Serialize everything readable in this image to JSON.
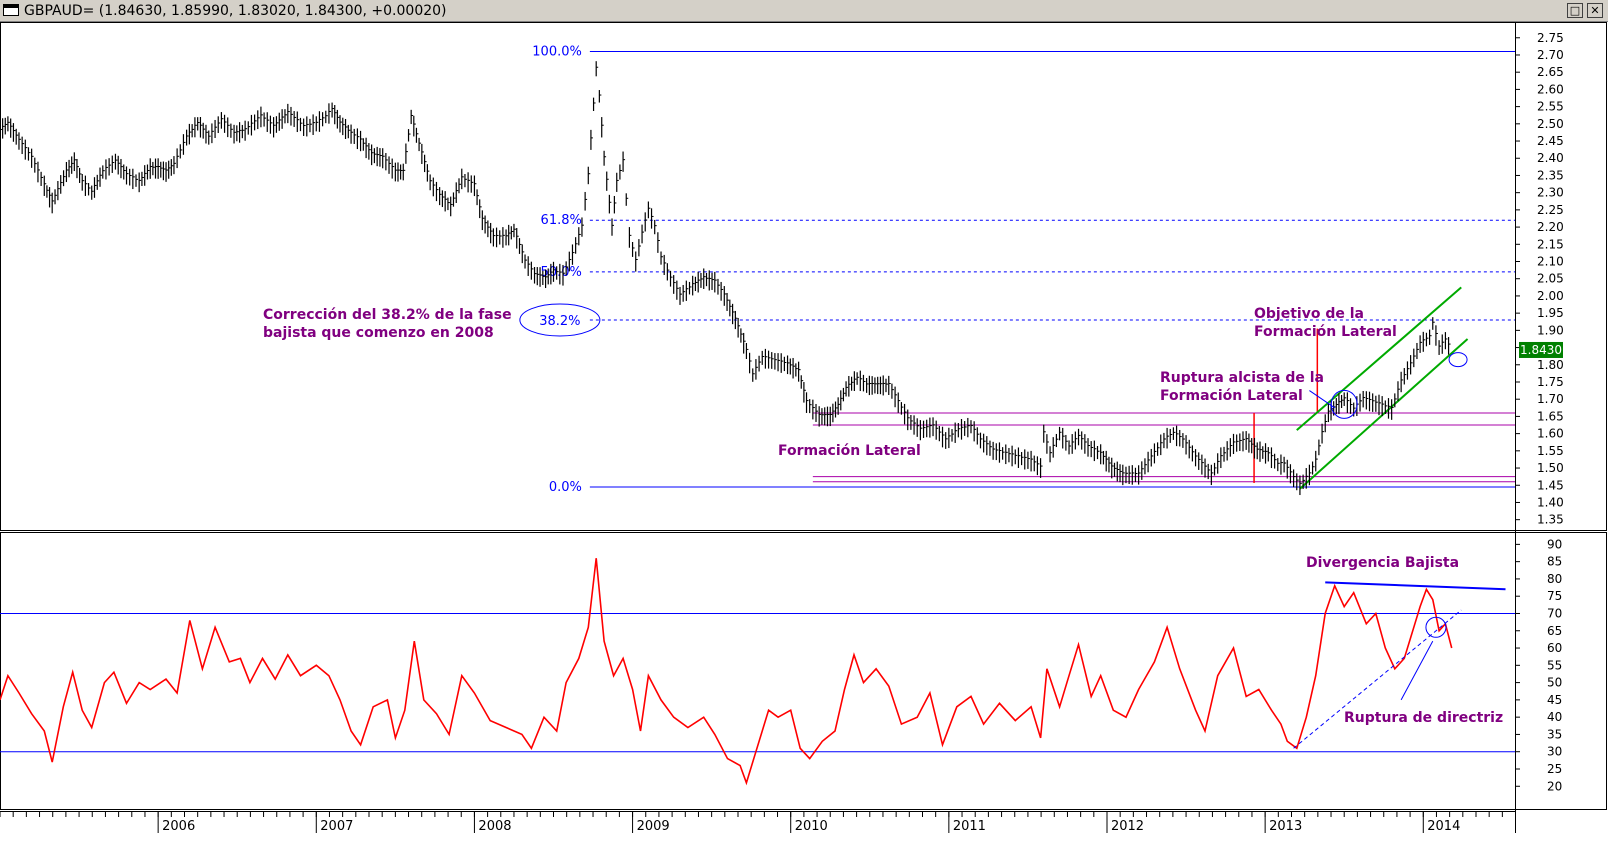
{
  "window": {
    "title": "GBPAUD= (1.84630, 1.85990, 1.83020, 1.84300, +0.00020)",
    "restore_glyph": "□",
    "close_glyph": "✕"
  },
  "colors": {
    "price": "#000000",
    "rsi": "#ff0000",
    "fib": "#0000ff",
    "range": "#aa00aa",
    "channel": "#00aa00",
    "annotation": "#800080",
    "last_price_bg": "#008000"
  },
  "chart_data": [
    {
      "type": "line",
      "name": "price",
      "xlim": [
        2005.0,
        2014.58
      ],
      "ylim": [
        1.32,
        2.79
      ],
      "y_ticks": [
        1.35,
        1.4,
        1.45,
        1.5,
        1.55,
        1.6,
        1.65,
        1.7,
        1.75,
        1.8,
        1.85,
        1.9,
        1.95,
        2.0,
        2.05,
        2.1,
        2.15,
        2.2,
        2.25,
        2.3,
        2.35,
        2.4,
        2.45,
        2.5,
        2.55,
        2.6,
        2.65,
        2.7,
        2.75
      ],
      "x_ticks": [
        {
          "x": 2006,
          "label": "2006"
        },
        {
          "x": 2007,
          "label": "2007"
        },
        {
          "x": 2008,
          "label": "2008"
        },
        {
          "x": 2009,
          "label": "2009"
        },
        {
          "x": 2010,
          "label": "2010"
        },
        {
          "x": 2011,
          "label": "2011"
        },
        {
          "x": 2012,
          "label": "2012"
        },
        {
          "x": 2013,
          "label": "2013"
        },
        {
          "x": 2014,
          "label": "2014"
        }
      ],
      "points": [
        [
          2005.0,
          2.48
        ],
        [
          2005.05,
          2.5
        ],
        [
          2005.12,
          2.45
        ],
        [
          2005.2,
          2.4
        ],
        [
          2005.28,
          2.32
        ],
        [
          2005.33,
          2.27
        ],
        [
          2005.42,
          2.36
        ],
        [
          2005.47,
          2.39
        ],
        [
          2005.52,
          2.33
        ],
        [
          2005.58,
          2.3
        ],
        [
          2005.65,
          2.36
        ],
        [
          2005.73,
          2.39
        ],
        [
          2005.8,
          2.35
        ],
        [
          2005.88,
          2.33
        ],
        [
          2005.95,
          2.37
        ],
        [
          2006.0,
          2.37
        ],
        [
          2006.05,
          2.36
        ],
        [
          2006.1,
          2.38
        ],
        [
          2006.18,
          2.46
        ],
        [
          2006.25,
          2.5
        ],
        [
          2006.32,
          2.46
        ],
        [
          2006.4,
          2.51
        ],
        [
          2006.48,
          2.47
        ],
        [
          2006.55,
          2.48
        ],
        [
          2006.65,
          2.52
        ],
        [
          2006.73,
          2.49
        ],
        [
          2006.82,
          2.53
        ],
        [
          2006.92,
          2.49
        ],
        [
          2007.0,
          2.5
        ],
        [
          2007.06,
          2.52
        ],
        [
          2007.1,
          2.54
        ],
        [
          2007.15,
          2.5
        ],
        [
          2007.22,
          2.47
        ],
        [
          2007.28,
          2.45
        ],
        [
          2007.35,
          2.41
        ],
        [
          2007.42,
          2.4
        ],
        [
          2007.5,
          2.36
        ],
        [
          2007.55,
          2.36
        ],
        [
          2007.6,
          2.52
        ],
        [
          2007.65,
          2.44
        ],
        [
          2007.72,
          2.33
        ],
        [
          2007.78,
          2.29
        ],
        [
          2007.85,
          2.26
        ],
        [
          2007.92,
          2.34
        ],
        [
          2008.0,
          2.32
        ],
        [
          2008.05,
          2.22
        ],
        [
          2008.12,
          2.17
        ],
        [
          2008.2,
          2.17
        ],
        [
          2008.25,
          2.19
        ],
        [
          2008.32,
          2.1
        ],
        [
          2008.38,
          2.06
        ],
        [
          2008.45,
          2.05
        ],
        [
          2008.5,
          2.07
        ],
        [
          2008.56,
          2.06
        ],
        [
          2008.62,
          2.12
        ],
        [
          2008.68,
          2.2
        ],
        [
          2008.72,
          2.35
        ],
        [
          2008.77,
          2.66
        ],
        [
          2008.79,
          2.58
        ],
        [
          2008.82,
          2.4
        ],
        [
          2008.87,
          2.2
        ],
        [
          2008.9,
          2.33
        ],
        [
          2008.94,
          2.39
        ],
        [
          2008.98,
          2.17
        ],
        [
          2009.02,
          2.1
        ],
        [
          2009.06,
          2.18
        ],
        [
          2009.1,
          2.25
        ],
        [
          2009.14,
          2.2
        ],
        [
          2009.18,
          2.11
        ],
        [
          2009.24,
          2.05
        ],
        [
          2009.3,
          2.0
        ],
        [
          2009.38,
          2.03
        ],
        [
          2009.45,
          2.05
        ],
        [
          2009.52,
          2.04
        ],
        [
          2009.58,
          2.0
        ],
        [
          2009.65,
          1.93
        ],
        [
          2009.72,
          1.84
        ],
        [
          2009.76,
          1.77
        ],
        [
          2009.82,
          1.82
        ],
        [
          2009.9,
          1.81
        ],
        [
          2009.98,
          1.8
        ],
        [
          2010.05,
          1.78
        ],
        [
          2010.1,
          1.69
        ],
        [
          2010.18,
          1.65
        ],
        [
          2010.25,
          1.65
        ],
        [
          2010.3,
          1.68
        ],
        [
          2010.35,
          1.73
        ],
        [
          2010.42,
          1.76
        ],
        [
          2010.48,
          1.74
        ],
        [
          2010.55,
          1.74
        ],
        [
          2010.62,
          1.74
        ],
        [
          2010.68,
          1.69
        ],
        [
          2010.74,
          1.64
        ],
        [
          2010.82,
          1.61
        ],
        [
          2010.9,
          1.62
        ],
        [
          2010.98,
          1.58
        ],
        [
          2011.06,
          1.61
        ],
        [
          2011.14,
          1.62
        ],
        [
          2011.2,
          1.58
        ],
        [
          2011.28,
          1.55
        ],
        [
          2011.36,
          1.54
        ],
        [
          2011.44,
          1.53
        ],
        [
          2011.52,
          1.52
        ],
        [
          2011.58,
          1.5
        ],
        [
          2011.6,
          1.6
        ],
        [
          2011.64,
          1.54
        ],
        [
          2011.7,
          1.6
        ],
        [
          2011.76,
          1.56
        ],
        [
          2011.82,
          1.59
        ],
        [
          2011.88,
          1.56
        ],
        [
          2011.96,
          1.54
        ],
        [
          2012.03,
          1.5
        ],
        [
          2012.1,
          1.48
        ],
        [
          2012.2,
          1.48
        ],
        [
          2012.28,
          1.53
        ],
        [
          2012.36,
          1.58
        ],
        [
          2012.42,
          1.6
        ],
        [
          2012.48,
          1.58
        ],
        [
          2012.56,
          1.53
        ],
        [
          2012.62,
          1.5
        ],
        [
          2012.66,
          1.48
        ],
        [
          2012.72,
          1.53
        ],
        [
          2012.8,
          1.57
        ],
        [
          2012.88,
          1.58
        ],
        [
          2012.95,
          1.55
        ],
        [
          2013.02,
          1.54
        ],
        [
          2013.08,
          1.51
        ],
        [
          2013.12,
          1.51
        ],
        [
          2013.18,
          1.47
        ],
        [
          2013.22,
          1.45
        ],
        [
          2013.28,
          1.48
        ],
        [
          2013.32,
          1.52
        ],
        [
          2013.36,
          1.6
        ],
        [
          2013.4,
          1.66
        ],
        [
          2013.45,
          1.68
        ],
        [
          2013.5,
          1.7
        ],
        [
          2013.56,
          1.67
        ],
        [
          2013.62,
          1.7
        ],
        [
          2013.68,
          1.69
        ],
        [
          2013.74,
          1.68
        ],
        [
          2013.8,
          1.67
        ],
        [
          2013.86,
          1.75
        ],
        [
          2013.92,
          1.8
        ],
        [
          2013.98,
          1.86
        ],
        [
          2014.04,
          1.88
        ],
        [
          2014.06,
          1.92
        ],
        [
          2014.1,
          1.85
        ],
        [
          2014.14,
          1.87
        ],
        [
          2014.18,
          1.84
        ]
      ]
    },
    {
      "type": "line",
      "name": "rsi",
      "xlim": [
        2005.0,
        2014.58
      ],
      "ylim": [
        14,
        93
      ],
      "y_ticks": [
        20,
        25,
        30,
        35,
        40,
        45,
        50,
        55,
        60,
        65,
        70,
        75,
        80,
        85,
        90
      ],
      "points": [
        [
          2005.0,
          45
        ],
        [
          2005.05,
          52
        ],
        [
          2005.12,
          47
        ],
        [
          2005.2,
          41
        ],
        [
          2005.28,
          36
        ],
        [
          2005.33,
          27
        ],
        [
          2005.4,
          43
        ],
        [
          2005.46,
          53
        ],
        [
          2005.52,
          42
        ],
        [
          2005.58,
          37
        ],
        [
          2005.66,
          50
        ],
        [
          2005.72,
          53
        ],
        [
          2005.8,
          44
        ],
        [
          2005.88,
          50
        ],
        [
          2005.95,
          48
        ],
        [
          2006.05,
          51
        ],
        [
          2006.12,
          47
        ],
        [
          2006.2,
          68
        ],
        [
          2006.28,
          54
        ],
        [
          2006.36,
          66
        ],
        [
          2006.45,
          56
        ],
        [
          2006.52,
          57
        ],
        [
          2006.58,
          50
        ],
        [
          2006.66,
          57
        ],
        [
          2006.74,
          51
        ],
        [
          2006.82,
          58
        ],
        [
          2006.9,
          52
        ],
        [
          2007.0,
          55
        ],
        [
          2007.08,
          52
        ],
        [
          2007.15,
          45
        ],
        [
          2007.22,
          36
        ],
        [
          2007.28,
          32
        ],
        [
          2007.36,
          43
        ],
        [
          2007.45,
          45
        ],
        [
          2007.5,
          34
        ],
        [
          2007.56,
          42
        ],
        [
          2007.62,
          62
        ],
        [
          2007.68,
          45
        ],
        [
          2007.76,
          41
        ],
        [
          2007.84,
          35
        ],
        [
          2007.92,
          52
        ],
        [
          2008.0,
          47
        ],
        [
          2008.1,
          39
        ],
        [
          2008.2,
          37
        ],
        [
          2008.3,
          35
        ],
        [
          2008.36,
          31
        ],
        [
          2008.44,
          40
        ],
        [
          2008.52,
          36
        ],
        [
          2008.58,
          50
        ],
        [
          2008.66,
          57
        ],
        [
          2008.72,
          66
        ],
        [
          2008.77,
          86
        ],
        [
          2008.82,
          62
        ],
        [
          2008.88,
          52
        ],
        [
          2008.94,
          57
        ],
        [
          2009.0,
          48
        ],
        [
          2009.05,
          36
        ],
        [
          2009.1,
          52
        ],
        [
          2009.18,
          45
        ],
        [
          2009.26,
          40
        ],
        [
          2009.35,
          37
        ],
        [
          2009.45,
          40
        ],
        [
          2009.52,
          35
        ],
        [
          2009.6,
          28
        ],
        [
          2009.68,
          26
        ],
        [
          2009.72,
          21
        ],
        [
          2009.78,
          30
        ],
        [
          2009.86,
          42
        ],
        [
          2009.92,
          40
        ],
        [
          2010.0,
          42
        ],
        [
          2010.06,
          31
        ],
        [
          2010.12,
          28
        ],
        [
          2010.2,
          33
        ],
        [
          2010.28,
          36
        ],
        [
          2010.34,
          48
        ],
        [
          2010.4,
          58
        ],
        [
          2010.46,
          50
        ],
        [
          2010.54,
          54
        ],
        [
          2010.62,
          49
        ],
        [
          2010.7,
          38
        ],
        [
          2010.8,
          40
        ],
        [
          2010.88,
          47
        ],
        [
          2010.96,
          32
        ],
        [
          2011.05,
          43
        ],
        [
          2011.14,
          46
        ],
        [
          2011.22,
          38
        ],
        [
          2011.32,
          44
        ],
        [
          2011.42,
          39
        ],
        [
          2011.52,
          43
        ],
        [
          2011.58,
          34
        ],
        [
          2011.62,
          54
        ],
        [
          2011.7,
          43
        ],
        [
          2011.76,
          52
        ],
        [
          2011.82,
          61
        ],
        [
          2011.9,
          46
        ],
        [
          2011.96,
          52
        ],
        [
          2012.04,
          42
        ],
        [
          2012.12,
          40
        ],
        [
          2012.2,
          48
        ],
        [
          2012.3,
          56
        ],
        [
          2012.38,
          66
        ],
        [
          2012.46,
          54
        ],
        [
          2012.56,
          42
        ],
        [
          2012.62,
          36
        ],
        [
          2012.7,
          52
        ],
        [
          2012.8,
          60
        ],
        [
          2012.88,
          46
        ],
        [
          2012.96,
          48
        ],
        [
          2013.04,
          42
        ],
        [
          2013.1,
          38
        ],
        [
          2013.14,
          33
        ],
        [
          2013.2,
          31
        ],
        [
          2013.26,
          40
        ],
        [
          2013.32,
          52
        ],
        [
          2013.38,
          70
        ],
        [
          2013.44,
          78
        ],
        [
          2013.5,
          72
        ],
        [
          2013.56,
          76
        ],
        [
          2013.64,
          67
        ],
        [
          2013.7,
          70
        ],
        [
          2013.76,
          60
        ],
        [
          2013.82,
          54
        ],
        [
          2013.88,
          57
        ],
        [
          2013.94,
          66
        ],
        [
          2013.98,
          72
        ],
        [
          2014.02,
          77
        ],
        [
          2014.06,
          74
        ],
        [
          2014.1,
          65
        ],
        [
          2014.14,
          67
        ],
        [
          2014.18,
          60
        ]
      ]
    }
  ],
  "price_levels": {
    "fib_100": 2.71,
    "fib_618": 2.22,
    "fib_50": 2.07,
    "fib_382": 1.93,
    "fib_0": 1.445,
    "range_top_1": 1.66,
    "range_top_2": 1.625,
    "range_bottom_1": 1.475,
    "range_bottom_2": 1.46
  },
  "rsi_levels": {
    "upper": 70,
    "lower": 30
  },
  "labels": {
    "fib_100": "100.0%",
    "fib_618": "61.8%",
    "fib_50": "50.0%",
    "fib_382": "38.2%",
    "fib_0": "0.0%",
    "correccion_1": "Corrección del 38.2% de la fase",
    "correccion_2": "bajista que comenzo en 2008",
    "objetivo_1": "Objetivo de la",
    "objetivo_2": "Formación Lateral",
    "ruptura_1": "Ruptura alcista de la",
    "ruptura_2": "Formación Lateral",
    "formacion": "Formación Lateral",
    "divergencia": "Divergencia Bajista",
    "ruptura_directriz": "Ruptura de directriz",
    "last_price": "1.8430"
  }
}
